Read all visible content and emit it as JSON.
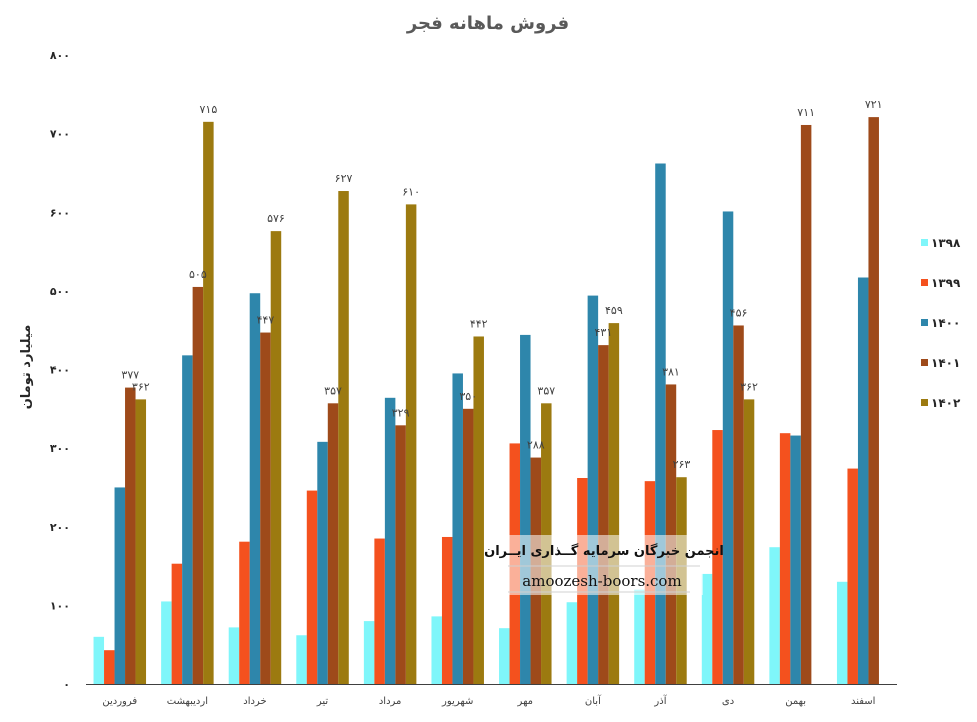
{
  "chart_data": {
    "type": "bar",
    "title": "فروش ماهانه فجر",
    "ylabel": "میلیارد تومان",
    "xlabel": "",
    "ylim": [
      0,
      800
    ],
    "yticks": [
      "۰",
      "۱۰۰",
      "۲۰۰",
      "۳۰۰",
      "۴۰۰",
      "۵۰۰",
      "۶۰۰",
      "۷۰۰",
      "۸۰۰"
    ],
    "categories": [
      "فروردین",
      "اردیبهشت",
      "خرداد",
      "تیر",
      "مرداد",
      "شهریور",
      "مهر",
      "آبان",
      "آذر",
      "دی",
      "بهمن",
      "اسفند"
    ],
    "legend_position": "right",
    "grid": false,
    "series": [
      {
        "name": "۱۳۹۸",
        "color": "#7ff6fa",
        "values": [
          60,
          105,
          72,
          62,
          80,
          86,
          71,
          104,
          120,
          140,
          174,
          130
        ],
        "labels": [
          "",
          "",
          "",
          "",
          "",
          "",
          "",
          "",
          "",
          "",
          "",
          ""
        ]
      },
      {
        "name": "۱۳۹۹",
        "color": "#f4511e",
        "values": [
          43,
          153,
          181,
          246,
          185,
          187,
          306,
          262,
          258,
          323,
          319,
          274
        ],
        "labels": [
          "",
          "",
          "",
          "",
          "",
          "",
          "",
          "",
          "",
          "",
          "",
          ""
        ]
      },
      {
        "name": "۱۴۰۰",
        "color": "#2e86ab",
        "values": [
          250,
          418,
          497,
          308,
          364,
          395,
          444,
          494,
          662,
          601,
          null,
          517
        ],
        "labels": [
          "",
          "",
          "",
          "",
          "",
          "",
          "",
          "",
          "",
          "",
          "",
          ""
        ]
      },
      {
        "name": "۱۴۰۱",
        "color": "#9e4a1a",
        "values": [
          377,
          505,
          447,
          357,
          329,
          350,
          288,
          431,
          381,
          456,
          711,
          721
        ],
        "labels": [
          "۳۷۷",
          "۵۰۵",
          "۴۴۷",
          "۳۵۷",
          "۳۲۹",
          "۳۵۰",
          "۲۸۸",
          "۴۳۱",
          "۳۸۱",
          "۴۵۶",
          "۷۱۱",
          "۷۲۱"
        ]
      },
      {
        "name": "۱۴۰۲",
        "color": "#9c7a10",
        "values": [
          362,
          715,
          576,
          627,
          610,
          442,
          357,
          459,
          263,
          362,
          null,
          null
        ],
        "labels": [
          "۳۶۲",
          "۷۱۵",
          "۵۷۶",
          "۶۲۷",
          "۶۱۰",
          "۴۴۲",
          "۳۵۷",
          "۴۵۹",
          "۲۶۳",
          "۳۶۲",
          "",
          ""
        ]
      }
    ],
    "bahman_1400": 316
  },
  "watermark": {
    "title": "انجمن خبرگان سرمایه گــذاری ایــران",
    "url": "amoozesh-boors.com"
  }
}
